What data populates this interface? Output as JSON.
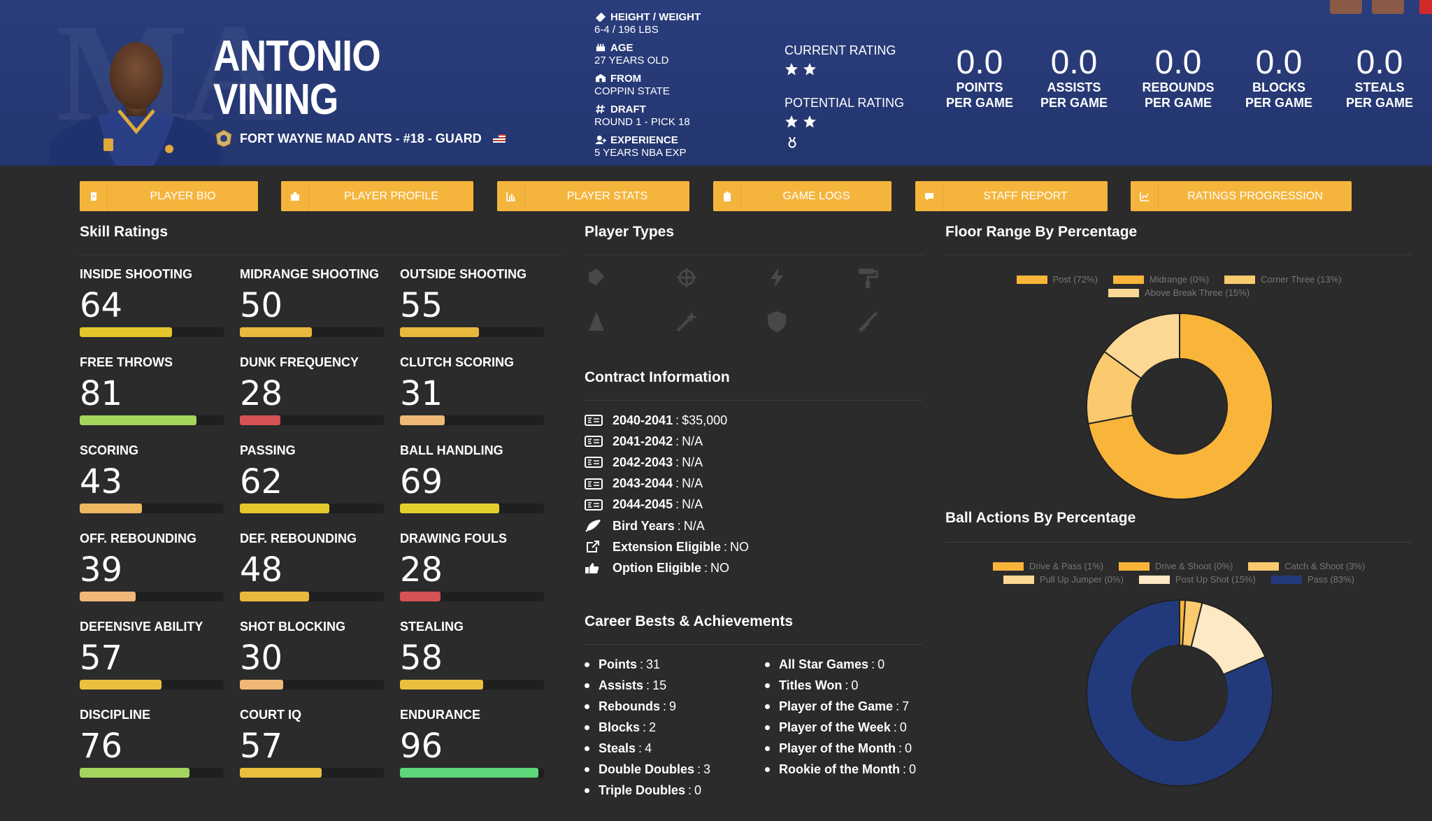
{
  "player": {
    "first_name": "ANTONIO",
    "last_name": "VINING",
    "team_line": "FORT WAYNE MAD ANTS - #18 - GUARD"
  },
  "bio": [
    {
      "label": "HEIGHT / WEIGHT",
      "value": "6-4 / 196 LBS",
      "icon": "ruler-icon"
    },
    {
      "label": "AGE",
      "value": "27 YEARS OLD",
      "icon": "age-icon"
    },
    {
      "label": "FROM",
      "value": "COPPIN STATE",
      "icon": "school-icon"
    },
    {
      "label": "DRAFT",
      "value": "ROUND 1 - PICK 18",
      "icon": "hash-icon"
    },
    {
      "label": "EXPERIENCE",
      "value": "5 YEARS NBA EXP",
      "icon": "user-icon"
    }
  ],
  "ratings": {
    "current_label": "CURRENT RATING",
    "current_stars": 2,
    "potential_label": "POTENTIAL RATING",
    "potential_stars": 2
  },
  "stats": [
    {
      "value": "0.0",
      "label1": "POINTS",
      "label2": "PER GAME"
    },
    {
      "value": "0.0",
      "label1": "ASSISTS",
      "label2": "PER GAME"
    },
    {
      "value": "0.0",
      "label1": "REBOUNDS",
      "label2": "PER GAME"
    },
    {
      "value": "0.0",
      "label1": "BLOCKS",
      "label2": "PER GAME"
    },
    {
      "value": "0.0",
      "label1": "STEALS",
      "label2": "PER GAME"
    }
  ],
  "tabs": [
    {
      "label": "PLAYER BIO",
      "icon": "badge-icon"
    },
    {
      "label": "PLAYER PROFILE",
      "icon": "profile-icon"
    },
    {
      "label": "PLAYER STATS",
      "icon": "bar-chart-icon"
    },
    {
      "label": "GAME LOGS",
      "icon": "clipboard-icon"
    },
    {
      "label": "STAFF REPORT",
      "icon": "comment-icon"
    },
    {
      "label": "RATINGS PROGRESSION",
      "icon": "line-chart-icon"
    }
  ],
  "sections": {
    "skills": "Skill Ratings",
    "player_types": "Player Types",
    "contract": "Contract Information",
    "career": "Career Bests & Achievements",
    "floor_range": "Floor Range By Percentage",
    "ball_actions": "Ball Actions By Percentage"
  },
  "skills": [
    {
      "name": "INSIDE SHOOTING",
      "value": "64",
      "level": 0.64,
      "color": "#e4c72c"
    },
    {
      "name": "MIDRANGE SHOOTING",
      "value": "50",
      "level": 0.5,
      "color": "#e9b93e"
    },
    {
      "name": "OUTSIDE SHOOTING",
      "value": "55",
      "level": 0.55,
      "color": "#e9b93e"
    },
    {
      "name": "FREE THROWS",
      "value": "81",
      "level": 0.81,
      "color": "#a4d65e"
    },
    {
      "name": "DUNK FREQUENCY",
      "value": "28",
      "level": 0.28,
      "color": "#d65353"
    },
    {
      "name": "CLUTCH SCORING",
      "value": "31",
      "level": 0.31,
      "color": "#efb876"
    },
    {
      "name": "SCORING",
      "value": "43",
      "level": 0.43,
      "color": "#efb860"
    },
    {
      "name": "PASSING",
      "value": "62",
      "level": 0.62,
      "color": "#e4c72c"
    },
    {
      "name": "BALL HANDLING",
      "value": "69",
      "level": 0.69,
      "color": "#e4d02c"
    },
    {
      "name": "OFF. REBOUNDING",
      "value": "39",
      "level": 0.39,
      "color": "#efb876"
    },
    {
      "name": "DEF. REBOUNDING",
      "value": "48",
      "level": 0.48,
      "color": "#e9b93e"
    },
    {
      "name": "DRAWING FOULS",
      "value": "28",
      "level": 0.28,
      "color": "#d65353"
    },
    {
      "name": "DEFENSIVE ABILITY",
      "value": "57",
      "level": 0.57,
      "color": "#e9c03e"
    },
    {
      "name": "SHOT BLOCKING",
      "value": "30",
      "level": 0.3,
      "color": "#efb876"
    },
    {
      "name": "STEALING",
      "value": "58",
      "level": 0.58,
      "color": "#e9c03e"
    },
    {
      "name": "DISCIPLINE",
      "value": "76",
      "level": 0.76,
      "color": "#a4d65e"
    },
    {
      "name": "COURT IQ",
      "value": "57",
      "level": 0.57,
      "color": "#e9c03e"
    },
    {
      "name": "ENDURANCE",
      "value": "96",
      "level": 0.96,
      "color": "#5cd67a"
    }
  ],
  "contract": [
    {
      "key": "2040-2041",
      "value": "$35,000",
      "icon": "money-icon"
    },
    {
      "key": "2041-2042",
      "value": "N/A",
      "icon": "money-icon"
    },
    {
      "key": "2042-2043",
      "value": "N/A",
      "icon": "money-icon"
    },
    {
      "key": "2043-2044",
      "value": "N/A",
      "icon": "money-icon"
    },
    {
      "key": "2044-2045",
      "value": "N/A",
      "icon": "money-icon"
    },
    {
      "key": "Bird Years",
      "value": "N/A",
      "icon": "feather-icon"
    },
    {
      "key": "Extension Eligible",
      "value": "NO",
      "icon": "external-link-icon"
    },
    {
      "key": "Option Eligible",
      "value": "NO",
      "icon": "thumbs-up-icon"
    }
  ],
  "career_left": [
    {
      "key": "Points",
      "value": "31"
    },
    {
      "key": "Assists",
      "value": "15"
    },
    {
      "key": "Rebounds",
      "value": "9"
    },
    {
      "key": "Blocks",
      "value": "2"
    },
    {
      "key": "Steals",
      "value": "4"
    },
    {
      "key": "Double Doubles",
      "value": "3"
    },
    {
      "key": "Triple Doubles",
      "value": "0"
    }
  ],
  "career_right": [
    {
      "key": "All Star Games",
      "value": "0"
    },
    {
      "key": "Titles Won",
      "value": "0"
    },
    {
      "key": "Player of the Game",
      "value": "7"
    },
    {
      "key": "Player of the Week",
      "value": "0"
    },
    {
      "key": "Player of the Month",
      "value": "0"
    },
    {
      "key": "Rookie of the Month",
      "value": "0"
    }
  ],
  "chart_data": [
    {
      "type": "pie",
      "title": "Floor Range By Percentage",
      "categories": [
        "Post (72%)",
        "Midrange (0%)",
        "Corner Three (13%)",
        "Above Break Three (15%)"
      ],
      "values": [
        72,
        0,
        13,
        15
      ],
      "colors": [
        "#f9b53a",
        "#f9b53a",
        "#fbc96e",
        "#fcd894"
      ],
      "legend": "top"
    },
    {
      "type": "pie",
      "title": "Ball Actions By Percentage",
      "categories": [
        "Drive & Pass (1%)",
        "Drive & Shoot (0%)",
        "Catch & Shoot (3%)",
        "Pull Up Jumper (0%)",
        "Post Up Shot (15%)",
        "Pass (83%)"
      ],
      "values": [
        1,
        0,
        3,
        0,
        15,
        83
      ],
      "colors": [
        "#f9b53a",
        "#f9b53a",
        "#fbc96e",
        "#fcd894",
        "#fde9c3",
        "#223a7c"
      ],
      "legend": "top"
    }
  ]
}
